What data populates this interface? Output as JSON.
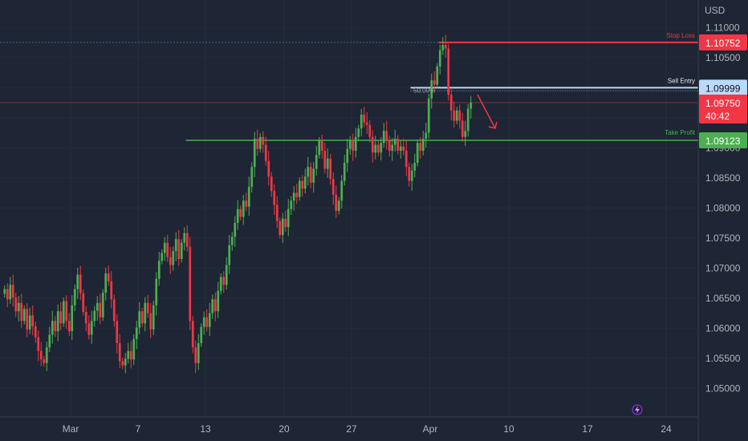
{
  "chart_data": {
    "type": "candlestick",
    "currency_label": "USD",
    "ylim": [
      1.0455,
      1.1135
    ],
    "price_ticks": [
      "1.11000",
      "1.10500",
      "1.10000",
      "1.09500",
      "1.09000",
      "1.08500",
      "1.08000",
      "1.07500",
      "1.07000",
      "1.06500",
      "1.06000",
      "1.05500",
      "1.05000"
    ],
    "date_ticks": [
      {
        "label": "Mar",
        "bar": 24
      },
      {
        "label": "7",
        "bar": 48
      },
      {
        "label": "13",
        "bar": 72
      },
      {
        "label": "20",
        "bar": 100
      },
      {
        "label": "27",
        "bar": 124
      },
      {
        "label": "Apr",
        "bar": 152
      },
      {
        "label": "10",
        "bar": 180
      },
      {
        "label": "17",
        "bar": 208
      },
      {
        "label": "24",
        "bar": 236
      }
    ],
    "levels": {
      "stop_loss": {
        "label": "Stop Loss",
        "value": 1.10752,
        "text": "1.10752",
        "color": "#f23645"
      },
      "sell_entry": {
        "label": "Sell Entry",
        "value": 1.09999,
        "text": "1.09999",
        "color": "#bbd9fb"
      },
      "take_profit": {
        "label": "Take Profit",
        "value": 1.09123,
        "text": "1.09123",
        "color": "#4caf50"
      }
    },
    "fib_label": "50.00%",
    "current_price": {
      "value": 1.0975,
      "text": "1.09750",
      "countdown": "40:42",
      "color": "#f23645"
    },
    "up_color": "#4caf50",
    "down_color": "#f23645",
    "closes": [
      1.0665,
      1.0648,
      1.0672,
      1.0651,
      1.0628,
      1.0642,
      1.0612,
      1.0632,
      1.0598,
      1.0621,
      1.0603,
      1.0585,
      1.0562,
      1.0548,
      1.0542,
      1.0568,
      1.0589,
      1.0612,
      1.0595,
      1.0628,
      1.0608,
      1.0645,
      1.0612,
      1.0595,
      1.0638,
      1.0665,
      1.0689,
      1.0658,
      1.0627,
      1.0608,
      1.0589,
      1.0612,
      1.0629,
      1.0642,
      1.0618,
      1.0659,
      1.0691,
      1.0678,
      1.0648,
      1.0612,
      1.0575,
      1.0545,
      1.0538,
      1.0549,
      1.0562,
      1.0548,
      1.0582,
      1.0601,
      1.0628,
      1.0608,
      1.0642,
      1.0625,
      1.0598,
      1.0638,
      1.0682,
      1.0712,
      1.0725,
      1.0742,
      1.0718,
      1.0705,
      1.0728,
      1.0748,
      1.0715,
      1.0742,
      1.0758,
      1.0735,
      1.0612,
      1.0568,
      1.0542,
      1.0575,
      1.0602,
      1.0618,
      1.0602,
      1.0625,
      1.0648,
      1.0628,
      1.0662,
      1.0685,
      1.0672,
      1.0705,
      1.0738,
      1.0752,
      1.0775,
      1.0798,
      1.0785,
      1.0812,
      1.0802,
      1.0835,
      1.0868,
      1.0915,
      1.0898,
      1.0918,
      1.0905,
      1.0878,
      1.0852,
      1.0828,
      1.0805,
      1.0778,
      1.0755,
      1.0782,
      1.0768,
      1.0798,
      1.0812,
      1.0825,
      1.0818,
      1.0845,
      1.0832,
      1.0852,
      1.0868,
      1.0842,
      1.0865,
      1.0888,
      1.0912,
      1.0895,
      1.0865,
      1.0882,
      1.0848,
      1.0822,
      1.0795,
      1.0812,
      1.0845,
      1.0875,
      1.0898,
      1.0912,
      1.0895,
      1.0918,
      1.0932,
      1.0955,
      1.0942,
      1.0938,
      1.0918,
      1.0892,
      1.0905,
      1.0892,
      1.0908,
      1.0928,
      1.0912,
      1.0895,
      1.0905,
      1.0915,
      1.0895,
      1.0902,
      1.0895,
      1.0868,
      1.0845,
      1.0862,
      1.0875,
      1.0908,
      1.0895,
      1.0915,
      1.0925,
      1.0982,
      1.1012,
      1.1005,
      1.1035,
      1.1062,
      1.1071,
      1.1065,
      1.0988,
      1.0962,
      1.0945,
      1.0962,
      1.0945,
      1.0918,
      1.0928,
      1.0965,
      1.0975
    ]
  }
}
